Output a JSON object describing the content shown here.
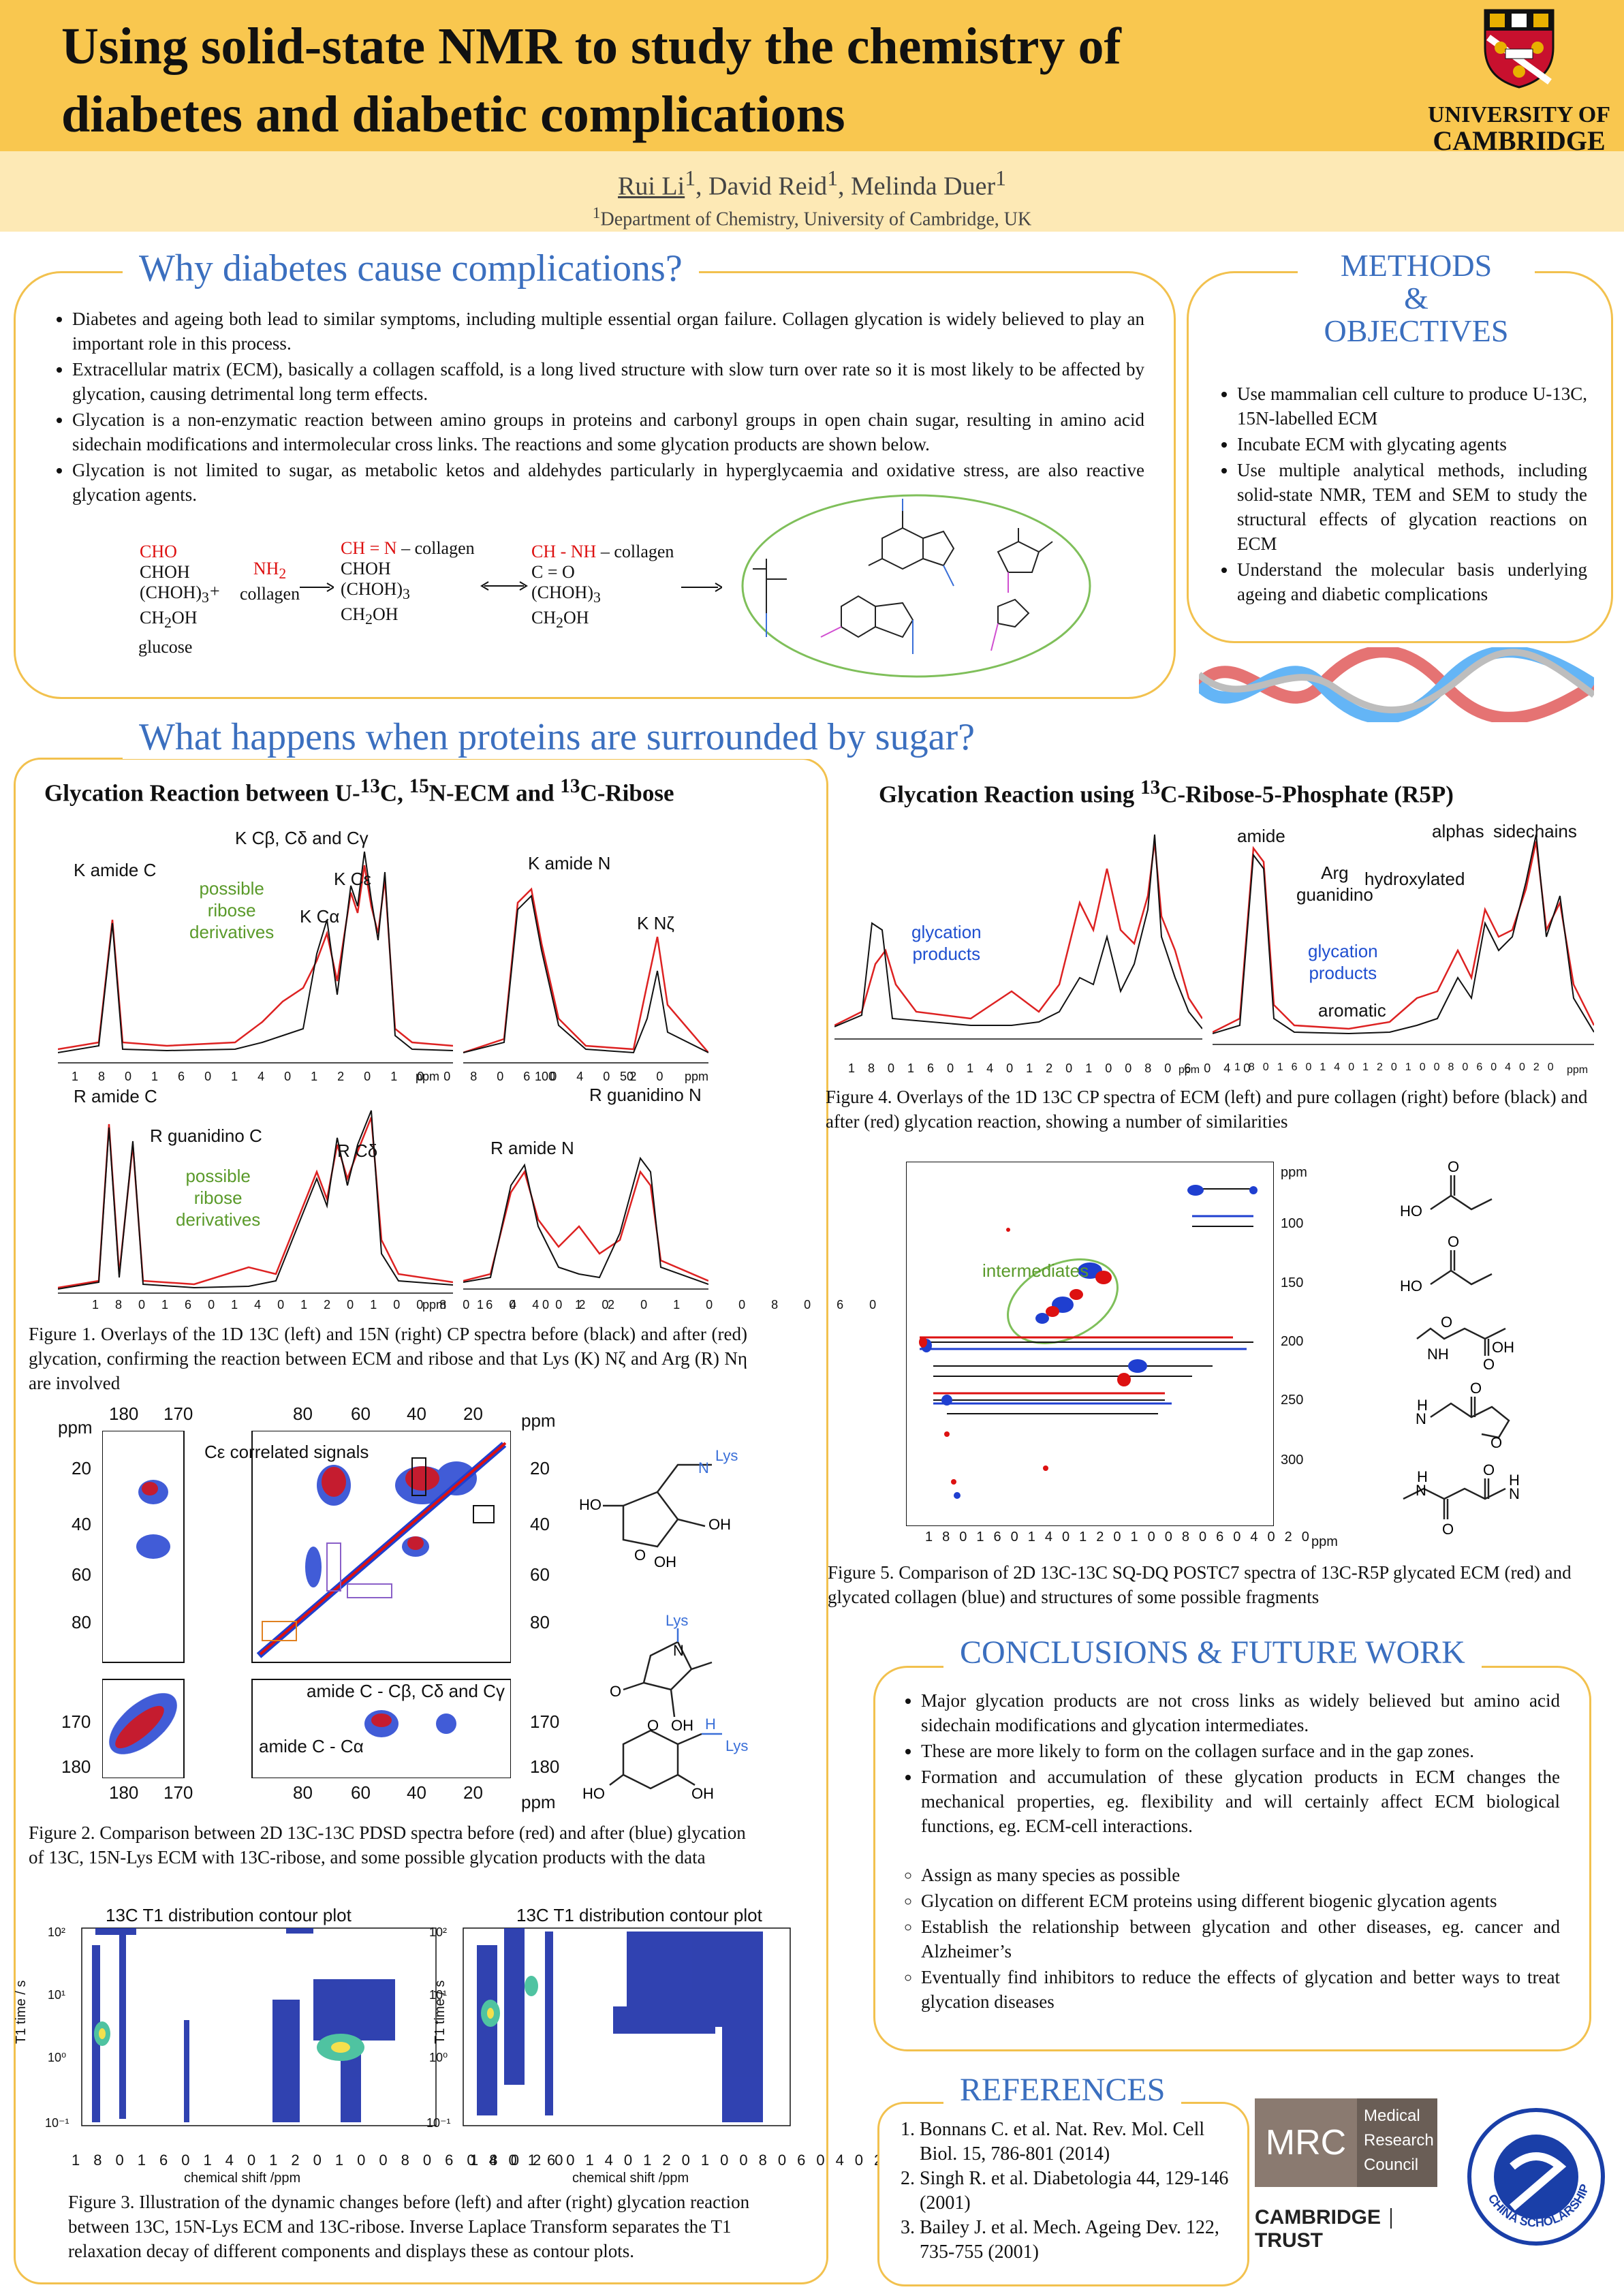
{
  "header": {
    "title_line1": "Using solid-state NMR to study the chemistry of",
    "title_line2": "diabetes and diabetic complications",
    "university_line1": "UNIVERSITY OF",
    "university_line2": "CAMBRIDGE"
  },
  "authors": {
    "a1": "Rui Li",
    "a2": "David Reid",
    "a3": "Melinda Duer",
    "sup": "1",
    "affiliation": "Department of Chemistry, University of Cambridge, UK"
  },
  "why": {
    "title": "Why diabetes cause complications?",
    "bullets": [
      "Diabetes and ageing both lead to similar symptoms, including multiple essential organ failure. Collagen glycation is widely believed to play an important role in this process.",
      "Extracellular matrix (ECM), basically a collagen scaffold, is a long lived structure with slow turn over rate so it is most likely to be affected by glycation, causing detrimental long term effects.",
      "Glycation is a non-enzymatic reaction between amino groups in proteins and carbonyl groups in open chain sugar, resulting in amino acid sidechain modifications and intermolecular cross links. The reactions and some glycation products are shown below.",
      "Glycation is not limited to sugar, as metabolic ketos and aldehydes particularly in hyperglycaemia and oxidative stress, are also reactive glycation agents."
    ],
    "scheme": {
      "cho": "CHO",
      "choh": "CHOH",
      "chohn": "(CHOH)",
      "sub3": "3",
      "ch2oh": "CH",
      "ch2oh_tail": "OH",
      "sub2": "2",
      "glucose": "glucose",
      "plus": "+",
      "nh2": "NH",
      "collagen": "collagen",
      "imine": "CH = N",
      "imine_tail": "– collagen",
      "amine": "CH - NH",
      "amine_tail": "– collagen",
      "co": "C = O"
    }
  },
  "methods": {
    "title1": "METHODS",
    "title2": "&",
    "title3": "OBJECTIVES",
    "bullets": [
      "Use mammalian cell culture to produce U-13C, 15N-labelled ECM",
      "Incubate ECM with glycating agents",
      "Use multiple analytical methods, including solid-state NMR, TEM and SEM to study the structural effects of glycation reactions on ECM",
      "Understand the molecular basis underlying ageing and diabetic complications"
    ]
  },
  "what": {
    "title": "What happens when proteins are surrounded by sugar?",
    "left_heading": "Glycation Reaction between U-13C, 15N-ECM and 13C-Ribose",
    "right_heading": "Glycation Reaction using 13C-Ribose-5-Phosphate (R5P)",
    "fig1_labels": {
      "k_amide_c": "K amide C",
      "k_cb": "K Cβ, Cδ and Cγ",
      "k_ce": "K Cε",
      "k_ca": "K Cα",
      "possible": "possible",
      "ribose": "ribose",
      "derivatives": "derivatives",
      "k_amide_n": "K amide N",
      "k_nz": "K Nζ",
      "r_amide_c": "R amide C",
      "r_guan_c": "R guanidino C",
      "r_cd": "R Cδ",
      "r_guan_n": "R guanidino N",
      "r_amide_n": "R amide N",
      "ppm": "ppm"
    },
    "fig1_axis_c": [
      "180",
      "160",
      "140",
      "120",
      "100",
      "80",
      "60",
      "40",
      "20"
    ],
    "fig1_axis_n": [
      "100",
      "50"
    ],
    "fig1_axis_rn": [
      "140",
      "120",
      "100",
      "80",
      "60"
    ],
    "fig1_caption": "Figure 1. Overlays of the 1D 13C (left) and 15N (right) CP spectra before (black) and after (red) glycation, confirming the reaction between ECM and ribose and that Lys (K) Nζ and Arg (R) Nη are involved",
    "fig2_labels": {
      "ppm": "ppm",
      "ce": "Cε correlated signals",
      "amide_cb": "amide C - Cβ, Cδ and Cγ",
      "amide_ca": "amide C - Cα",
      "lys": "Lys",
      "ho": "HO",
      "oh": "OH",
      "o": "O",
      "n": "N",
      "h": "H"
    },
    "fig2_top_axis_left": [
      "180",
      "170"
    ],
    "fig2_top_axis_right": [
      "80",
      "60",
      "40",
      "20"
    ],
    "fig2_left_axis": [
      "20",
      "40",
      "60",
      "80"
    ],
    "fig2_left_axis2": [
      "170",
      "180"
    ],
    "fig2_caption": "Figure 2. Comparison between 2D 13C-13C PDSD spectra before (red) and after (blue) glycation of 13C, 15N-Lys ECM with 13C-ribose, and some possible glycation products with the data",
    "fig3_title": "13C T1 distribution contour plot",
    "fig3_xlabel": "chemical shift /ppm",
    "fig3_ylabel": "T1 time / s",
    "fig3_xaxis": [
      "180",
      "160",
      "140",
      "120",
      "100",
      "80",
      "60",
      "40",
      "20"
    ],
    "fig3_yaxis": [
      "10²",
      "10¹",
      "10⁰",
      "10⁻¹"
    ],
    "fig3_caption": "Figure 3. Illustration of the dynamic changes before (left) and after (right) glycation reaction between 13C, 15N-Lys ECM and 13C-ribose. Inverse Laplace Transform separates the T1 relaxation decay of different components and displays these as contour plots.",
    "fig4_labels": {
      "glycation": "glycation",
      "products": "products",
      "amide": "amide",
      "arg": "Arg",
      "guanidino": "guanidino",
      "hydroxylated": "hydroxylated",
      "alphas": "alphas",
      "sidechains": "sidechains",
      "aromatic": "aromatic",
      "ppm": "ppm"
    },
    "fig4_axis": [
      "180",
      "160",
      "140",
      "120",
      "100",
      "80",
      "60",
      "40"
    ],
    "fig4_axis_r": [
      "180",
      "160",
      "140",
      "120",
      "100",
      "80",
      "60",
      "40",
      "20"
    ],
    "fig4_caption": "Figure 4. Overlays of the 1D 13C CP spectra of ECM (left) and pure collagen (right) before (black) and after (red) glycation reaction, showing a number of similarities",
    "fig5_labels": {
      "intermediates": "intermediates",
      "ppm": "ppm",
      "ho": "HO",
      "oh": "OH",
      "o": "O",
      "nh": "NH",
      "n": "N",
      "h": "H"
    },
    "fig5_xaxis": [
      "180",
      "160",
      "140",
      "120",
      "100",
      "80",
      "60",
      "40",
      "20"
    ],
    "fig5_yaxis": [
      "100",
      "150",
      "200",
      "250",
      "300"
    ],
    "fig5_caption": "Figure 5. Comparison of 2D 13C-13C SQ-DQ POSTC7 spectra of 13C-R5P glycated ECM (red) and glycated collagen (blue) and structures of some possible fragments"
  },
  "conclusions": {
    "title": "CONCLUSIONS & FUTURE WORK",
    "bullets": [
      "Major glycation products are not cross links as widely believed but amino acid sidechain modifications and glycation intermediates.",
      "These are more likely to form on the collagen surface and in the gap zones.",
      "Formation and accumulation of these glycation products in ECM changes the mechanical properties, eg. flexibility and will certainly affect ECM biological functions, eg. ECM-cell interactions."
    ],
    "future": [
      "Assign as many species as possible",
      "Glycation on different ECM proteins using different biogenic glycation agents",
      "Establish the relationship between glycation and other diseases, eg. cancer and Alzheimer’s",
      "Eventually find inhibitors to reduce the effects of glycation and better ways to treat glycation diseases"
    ]
  },
  "references": {
    "title": "REFERENCES",
    "items": [
      "Bonnans C. et al. Nat. Rev. Mol. Cell Biol. 15, 786-801 (2014)",
      "Singh R. et al. Diabetologia 44, 129-146 (2001)",
      "Bailey J. et al. Mech. Ageing Dev. 122, 735-755 (2001)"
    ]
  },
  "logos": {
    "mrc": "MRC",
    "mrc_1": "Medical",
    "mrc_2": "Research",
    "mrc_3": "Council",
    "cam": "CAMBRIDGE",
    "trust": "TRUST",
    "csc": "CHINA SCHOLARSHIP COUNCIL"
  },
  "colors": {
    "accent": "#f9c74f",
    "title_blue": "#3b6fbf",
    "panel_border": "#f2c14e"
  }
}
